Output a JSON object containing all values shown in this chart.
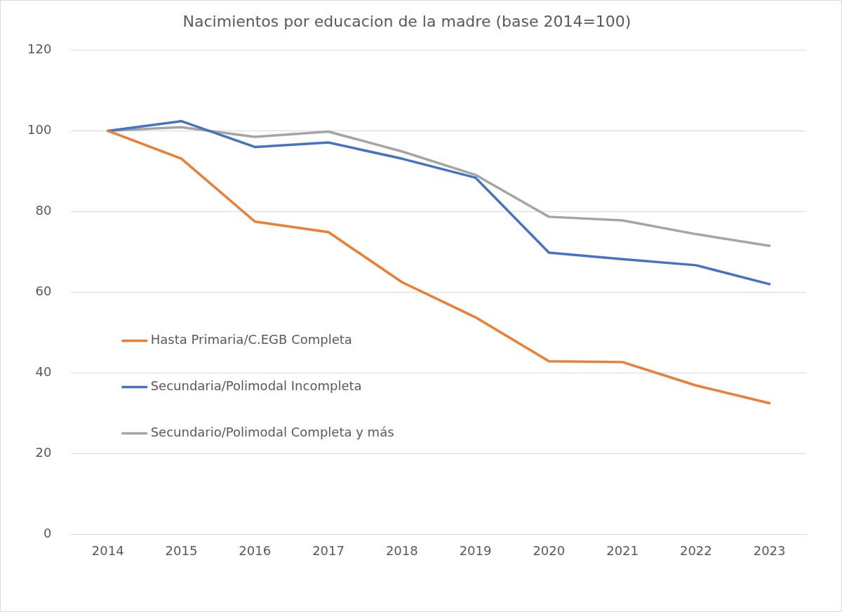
{
  "chart_data": {
    "type": "line",
    "title": "Nacimientos por educacion de la madre (base 2014=100)",
    "categories": [
      "2014",
      "2015",
      "2016",
      "2017",
      "2018",
      "2019",
      "2020",
      "2021",
      "2022",
      "2023"
    ],
    "series": [
      {
        "name": "Hasta Primaria/C.EGB Completa",
        "color": "#ed7d31",
        "values": [
          100,
          93.1,
          77.5,
          74.9,
          62.5,
          53.8,
          42.9,
          42.7,
          36.9,
          32.5
        ]
      },
      {
        "name": "Secundaria/Polimodal Incompleta",
        "color": "#4472c4",
        "values": [
          100,
          102.4,
          96,
          97.1,
          93.1,
          88.4,
          69.8,
          68.2,
          66.7,
          62
        ]
      },
      {
        "name": "Secundario/Polimodal Completa y más",
        "color": "#a5a5a5",
        "values": [
          100,
          100.9,
          98.5,
          99.8,
          94.9,
          89.1,
          78.7,
          77.8,
          74.4,
          71.5
        ]
      }
    ],
    "ylim": [
      0,
      120
    ],
    "yticks": [
      0,
      20,
      40,
      60,
      80,
      100,
      120
    ],
    "grid": "y",
    "legend": "left",
    "marker": "none",
    "line_style": "solid"
  }
}
